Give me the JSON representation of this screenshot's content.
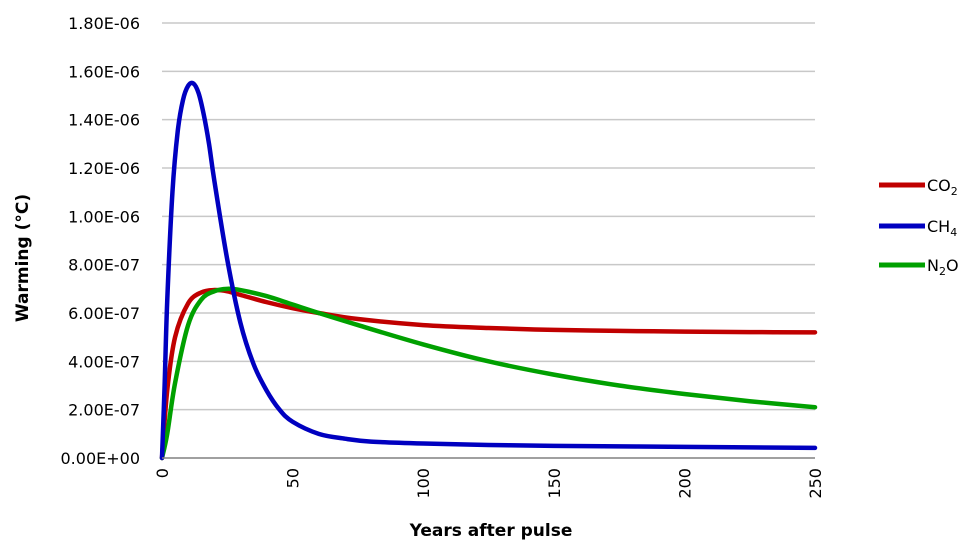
{
  "chart_data": {
    "type": "line",
    "title": "",
    "xlabel": "Years after pulse",
    "ylabel": "Warming (°C)",
    "xlim": [
      0,
      250
    ],
    "ylim": [
      0,
      1.8e-06
    ],
    "x_ticks": [
      0,
      50,
      100,
      150,
      200,
      250
    ],
    "x_tick_labels": [
      "0",
      "50",
      "100",
      "150",
      "200",
      "250"
    ],
    "y_ticks": [
      0,
      2e-07,
      4e-07,
      6e-07,
      8e-07,
      1e-06,
      1.2e-06,
      1.4e-06,
      1.6e-06,
      1.8e-06
    ],
    "y_tick_labels": [
      "0.00E+00",
      "2.00E-07",
      "4.00E-07",
      "6.00E-07",
      "8.00E-07",
      "1.00E-06",
      "1.20E-06",
      "1.40E-06",
      "1.60E-06",
      "1.80E-06"
    ],
    "grid": "horizontal",
    "legend_position": "right",
    "series": [
      {
        "name": "CO2",
        "label_main": "CO",
        "label_sub": "2",
        "color": "#c00000",
        "x": [
          0,
          2,
          5,
          10,
          15,
          20,
          25,
          30,
          40,
          50,
          60,
          75,
          100,
          125,
          150,
          175,
          200,
          225,
          250
        ],
        "y": [
          0,
          2.8e-07,
          5e-07,
          6.4e-07,
          6.85e-07,
          6.95e-07,
          6.9e-07,
          6.75e-07,
          6.45e-07,
          6.2e-07,
          6e-07,
          5.75e-07,
          5.5e-07,
          5.38e-07,
          5.3e-07,
          5.26e-07,
          5.23e-07,
          5.21e-07,
          5.2e-07
        ]
      },
      {
        "name": "CH4",
        "label_main": "CH",
        "label_sub": "4",
        "color": "#0000c0",
        "x": [
          0,
          1,
          2,
          4,
          6,
          8,
          10,
          12,
          14,
          16,
          18,
          20,
          25,
          30,
          35,
          40,
          45,
          50,
          60,
          70,
          80,
          100,
          125,
          150,
          200,
          250
        ],
        "y": [
          0,
          3e-07,
          6.5e-07,
          1.1e-06,
          1.35e-06,
          1.48e-06,
          1.54e-06,
          1.55e-06,
          1.51e-06,
          1.42e-06,
          1.3e-06,
          1.15e-06,
          8.2e-07,
          5.6e-07,
          3.9e-07,
          2.8e-07,
          2e-07,
          1.5e-07,
          1e-07,
          8e-08,
          6.8e-08,
          6e-08,
          5.4e-08,
          5e-08,
          4.6e-08,
          4.2e-08
        ]
      },
      {
        "name": "N2O",
        "label_main": "N",
        "label_sub": "2",
        "label_tail": "O",
        "color": "#00a000",
        "x": [
          0,
          2,
          5,
          10,
          15,
          20,
          25,
          30,
          40,
          50,
          60,
          75,
          100,
          125,
          150,
          175,
          200,
          225,
          250
        ],
        "y": [
          0,
          1e-07,
          3.1e-07,
          5.5e-07,
          6.55e-07,
          6.9e-07,
          7e-07,
          6.95e-07,
          6.7e-07,
          6.35e-07,
          6e-07,
          5.5e-07,
          4.7e-07,
          4e-07,
          3.45e-07,
          3e-07,
          2.65e-07,
          2.35e-07,
          2.1e-07
        ]
      }
    ]
  }
}
